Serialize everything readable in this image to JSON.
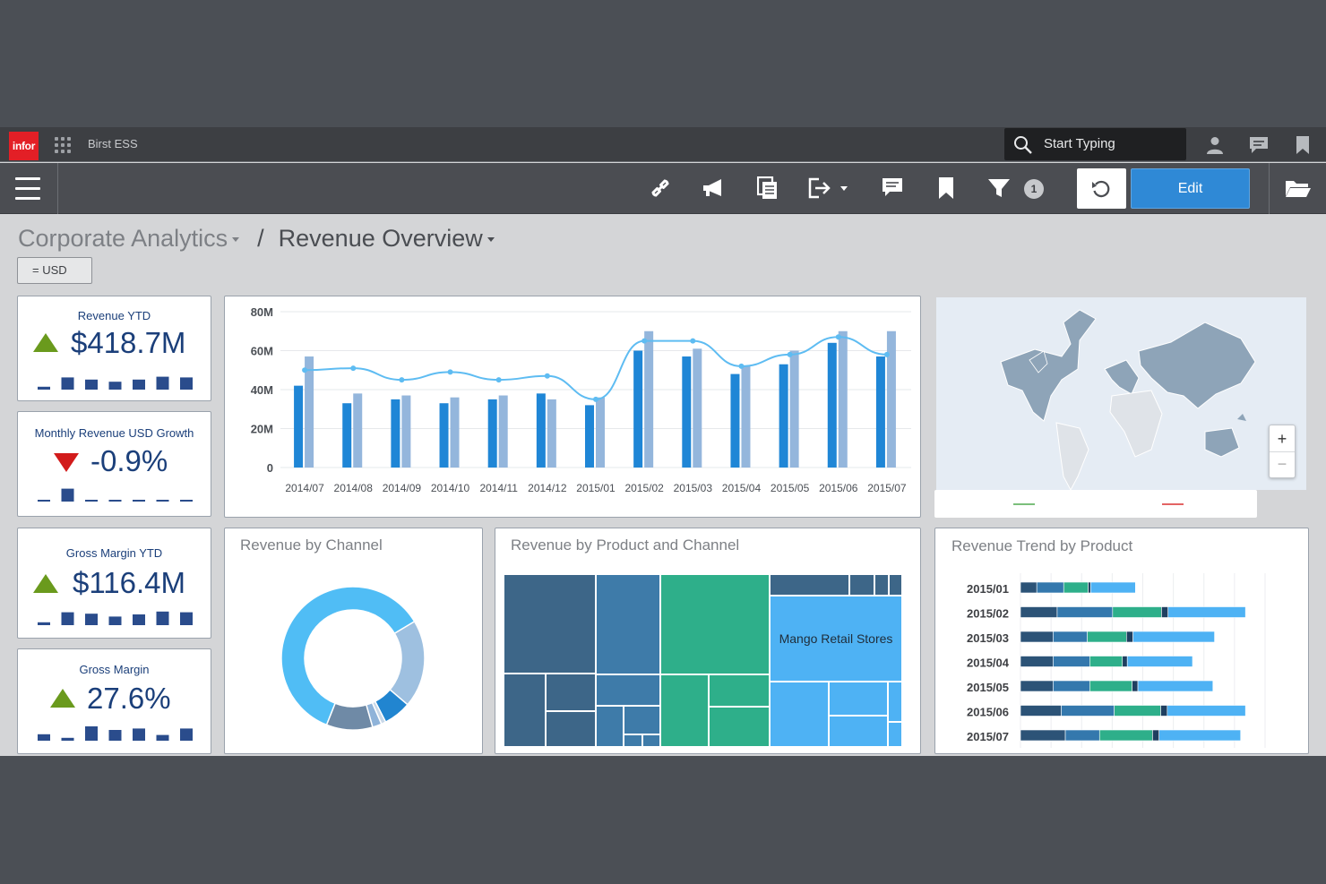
{
  "topbar": {
    "logo": "infor",
    "app_name": "Birst ESS",
    "search_placeholder": "Start Typing"
  },
  "toolbar": {
    "filter_count": "1",
    "edit_label": "Edit"
  },
  "breadcrumb": {
    "parent": "Corporate Analytics",
    "separator": "/",
    "current": "Revenue Overview"
  },
  "currency_filter": "= USD",
  "kpis": [
    {
      "title": "Revenue YTD",
      "value": "$418.7M",
      "trend": "up",
      "spark": [
        0.2,
        0.85,
        0.7,
        0.55,
        0.7,
        0.9,
        0.85
      ]
    },
    {
      "title": "Monthly Revenue USD Growth",
      "value": "-0.9%",
      "trend": "down",
      "spark": [
        0.05,
        0.9,
        0.1,
        0.1,
        0.1,
        0.1,
        0.05
      ]
    },
    {
      "title": "Gross Margin YTD",
      "value": "$116.4M",
      "trend": "up",
      "spark": [
        0.2,
        0.9,
        0.8,
        0.6,
        0.75,
        0.95,
        0.9
      ]
    },
    {
      "title": "Gross Margin",
      "value": "27.6%",
      "trend": "up",
      "spark": [
        0.45,
        0.2,
        1.0,
        0.75,
        0.85,
        0.4,
        0.85
      ]
    }
  ],
  "colors": {
    "accent": "#2f89d6",
    "navy": "#1b3f7a",
    "bar_dark": "#1f86d6",
    "bar_light": "#94b6dc",
    "line": "#5ebcf2",
    "up": "#6a9a1d",
    "down": "#d21b1b"
  },
  "chart_data": [
    {
      "type": "bar",
      "title": "",
      "categories": [
        "2014/07",
        "2014/08",
        "2014/09",
        "2014/10",
        "2014/11",
        "2014/12",
        "2015/01",
        "2015/02",
        "2015/03",
        "2015/04",
        "2015/05",
        "2015/06",
        "2015/07"
      ],
      "series": [
        {
          "values": [
            42,
            33,
            35,
            33,
            35,
            38,
            32,
            60,
            57,
            48,
            53,
            64,
            57
          ]
        },
        {
          "values": [
            57,
            38,
            37,
            36,
            37,
            35,
            36,
            70,
            61,
            52,
            60,
            70,
            70
          ]
        },
        {
          "type": "line",
          "values": [
            50,
            51,
            45,
            49,
            45,
            47,
            35,
            65,
            65,
            52,
            58,
            67,
            58
          ]
        }
      ],
      "yticks": [
        "0",
        "20M",
        "40M",
        "60M",
        "80M"
      ],
      "ylim": [
        0,
        80
      ]
    },
    {
      "type": "pie",
      "title": "Revenue by Channel",
      "values": [
        58,
        19,
        6,
        10,
        2,
        1
      ]
    },
    {
      "type": "heatmap",
      "title": "Revenue by Product and Channel",
      "label": "Mango Retail Stores"
    },
    {
      "type": "bar",
      "title": "Revenue Trend by Product",
      "categories": [
        "2015/01",
        "2015/02",
        "2015/03",
        "2015/04",
        "2015/05",
        "2015/06",
        "2015/07"
      ],
      "series": [
        {
          "values": [
            20,
            45,
            40,
            40,
            40,
            50,
            55
          ]
        },
        {
          "values": [
            33,
            68,
            42,
            45,
            45,
            65,
            42
          ]
        },
        {
          "values": [
            30,
            60,
            48,
            40,
            52,
            57,
            65
          ]
        },
        {
          "values": [
            3,
            8,
            8,
            6,
            7,
            8,
            8
          ]
        },
        {
          "values": [
            55,
            95,
            100,
            80,
            92,
            96,
            100
          ]
        }
      ]
    }
  ]
}
